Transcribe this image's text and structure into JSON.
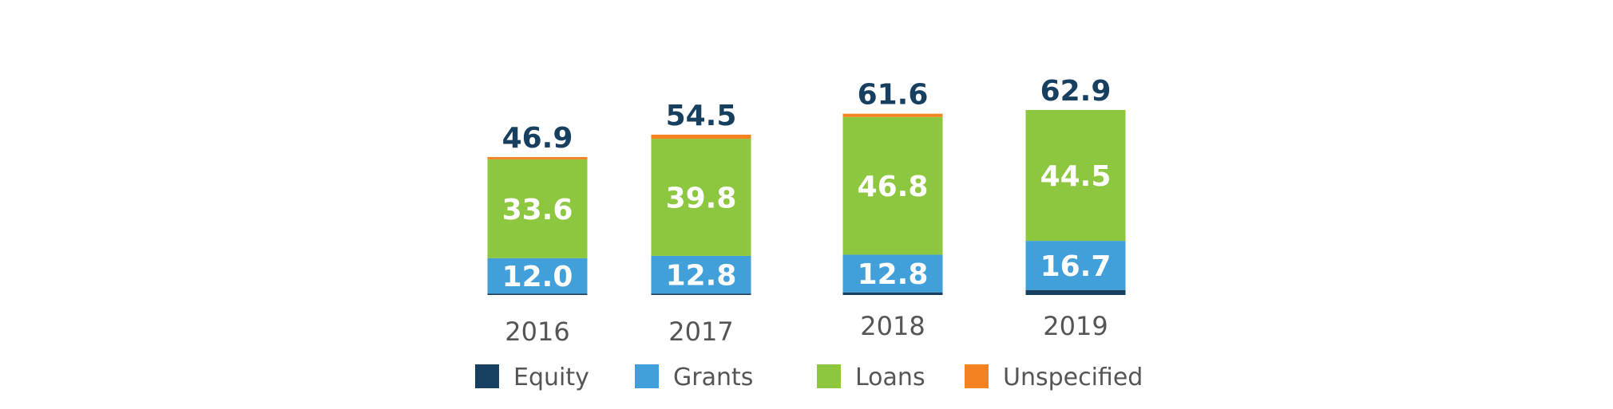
{
  "chart_data": {
    "type": "bar",
    "stacked": true,
    "title": "",
    "xlabel": "",
    "ylabel": "",
    "categories": [
      "2016",
      "2017",
      "2018",
      "2019"
    ],
    "series": [
      {
        "name": "Equity",
        "color": "#173F5F",
        "values": [
          0.5,
          0.5,
          0.9,
          1.7
        ]
      },
      {
        "name": "Grants",
        "color": "#419FD9",
        "values": [
          12.0,
          12.8,
          12.8,
          16.7
        ]
      },
      {
        "name": "Loans",
        "color": "#8DC63F",
        "values": [
          33.6,
          39.8,
          46.8,
          44.5
        ]
      },
      {
        "name": "Unspecified",
        "color": "#F58220",
        "values": [
          0.8,
          1.4,
          1.1,
          0.0
        ]
      }
    ],
    "segment_labels": {
      "Grants": [
        "12.0",
        "12.8",
        "12.8",
        "16.7"
      ],
      "Loans": [
        "33.6",
        "39.8",
        "46.8",
        "44.5"
      ]
    },
    "totals": [
      "46.9",
      "54.5",
      "61.6",
      "62.9"
    ],
    "ylim": [
      0,
      65
    ],
    "grid": false,
    "legend_position": "bottom",
    "colors": {
      "total_label": "#173F5F",
      "segment_label": "#ffffff",
      "year_label": "#555555",
      "legend_label": "#555555"
    }
  }
}
